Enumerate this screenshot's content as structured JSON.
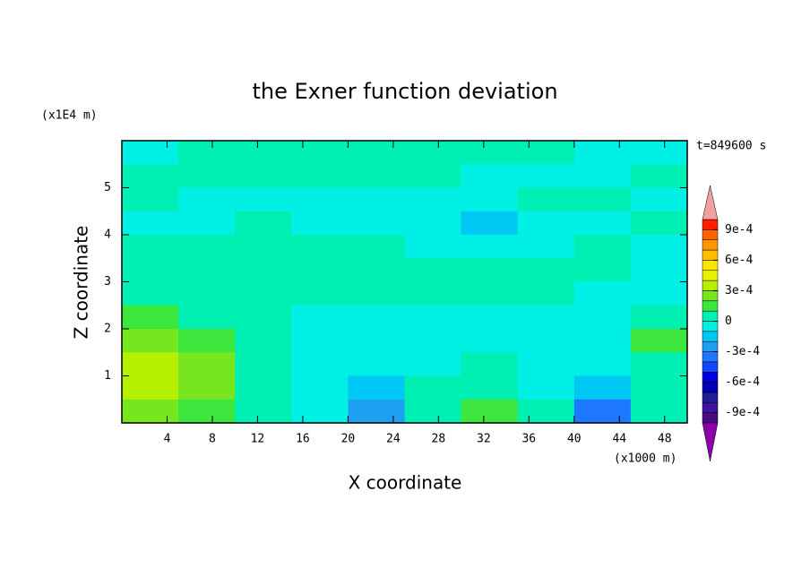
{
  "chart_data": {
    "type": "contour",
    "title": "the Exner function deviation",
    "y_unit": "(x1E4 m)",
    "x_unit": "(x1000 m)",
    "time_label": "t=849600 s",
    "xlabel": "X coordinate",
    "ylabel": "Z coordinate",
    "xlim": [
      0,
      50
    ],
    "ylim": [
      0,
      6
    ],
    "xticks": [
      4,
      8,
      12,
      16,
      20,
      24,
      28,
      32,
      36,
      40,
      44,
      48
    ],
    "yticks": [
      1,
      2,
      3,
      4,
      5
    ],
    "x": [
      2.5,
      7.5,
      12.5,
      17.5,
      22.5,
      27.5,
      32.5,
      37.5,
      42.5,
      47.5
    ],
    "y": [
      5.75,
      5.25,
      4.75,
      4.25,
      3.75,
      3.25,
      2.75,
      2.25,
      1.75,
      1.25,
      0.75,
      0.25
    ],
    "z": [
      [
        -5e-05,
        5e-05,
        5e-05,
        5e-05,
        5e-05,
        5e-05,
        5e-05,
        5e-05,
        -5e-05,
        -5e-05
      ],
      [
        5e-05,
        5e-05,
        5e-05,
        5e-05,
        5e-05,
        5e-05,
        -5e-05,
        -5e-05,
        -5e-05,
        5e-05
      ],
      [
        5e-05,
        -5e-05,
        -5e-05,
        -5e-05,
        -5e-05,
        -5e-05,
        -5e-05,
        5e-05,
        5e-05,
        -5e-05
      ],
      [
        -5e-05,
        -5e-05,
        5e-05,
        -5e-05,
        -5e-05,
        -5e-05,
        -0.00015,
        -5e-05,
        -5e-05,
        5e-05
      ],
      [
        5e-05,
        5e-05,
        5e-05,
        5e-05,
        5e-05,
        -5e-05,
        -5e-05,
        -5e-05,
        5e-05,
        -5e-05
      ],
      [
        5e-05,
        5e-05,
        5e-05,
        5e-05,
        5e-05,
        5e-05,
        5e-05,
        5e-05,
        5e-05,
        -5e-05
      ],
      [
        5e-05,
        5e-05,
        5e-05,
        5e-05,
        5e-05,
        5e-05,
        5e-05,
        5e-05,
        -5e-05,
        -5e-05
      ],
      [
        0.00015,
        5e-05,
        5e-05,
        -5e-05,
        -5e-05,
        -5e-05,
        -5e-05,
        -5e-05,
        -5e-05,
        5e-05
      ],
      [
        0.00025,
        0.00015,
        5e-05,
        -5e-05,
        -5e-05,
        -5e-05,
        -5e-05,
        -5e-05,
        -5e-05,
        0.00015
      ],
      [
        0.00035,
        0.00025,
        5e-05,
        -5e-05,
        -5e-05,
        -5e-05,
        5e-05,
        -5e-05,
        -5e-05,
        5e-05
      ],
      [
        0.00035,
        0.00025,
        5e-05,
        -5e-05,
        -0.00015,
        5e-05,
        5e-05,
        -5e-05,
        -0.00015,
        5e-05
      ],
      [
        0.00025,
        0.00015,
        5e-05,
        -5e-05,
        -0.00025,
        5e-05,
        0.00015,
        5e-05,
        -0.00035,
        5e-05
      ]
    ],
    "colorbar": {
      "levels": [
        -0.001,
        -0.0009,
        -0.0008,
        -0.0007,
        -0.0006,
        -0.0005,
        -0.0004,
        -0.0003,
        -0.0002,
        -0.0001,
        0,
        0.0001,
        0.0002,
        0.0003,
        0.0004,
        0.0005,
        0.0006,
        0.0007,
        0.0008,
        0.0009,
        0.001
      ],
      "colors": [
        "#4b0a82",
        "#3c14a0",
        "#1e1e96",
        "#0000b4",
        "#0000dc",
        "#1446ff",
        "#1e78ff",
        "#1ea0f0",
        "#00c8f5",
        "#00f0e6",
        "#00f0b4",
        "#3ce63c",
        "#78e61e",
        "#b4f000",
        "#e6f000",
        "#ffe600",
        "#ffbe00",
        "#ff9600",
        "#ff6400",
        "#ff1e00"
      ],
      "under_color": "#8c00aa",
      "over_color": "#f0a0a0",
      "ticks": [
        {
          "value": -0.0009,
          "label": "-9e-4"
        },
        {
          "value": -0.0006,
          "label": "-6e-4"
        },
        {
          "value": -0.0003,
          "label": "-3e-4"
        },
        0,
        {
          "value": 0.0003,
          "label": "3e-4"
        },
        {
          "value": 0.0006,
          "label": "6e-4"
        },
        {
          "value": 0.0009,
          "label": "9e-4"
        }
      ]
    }
  }
}
